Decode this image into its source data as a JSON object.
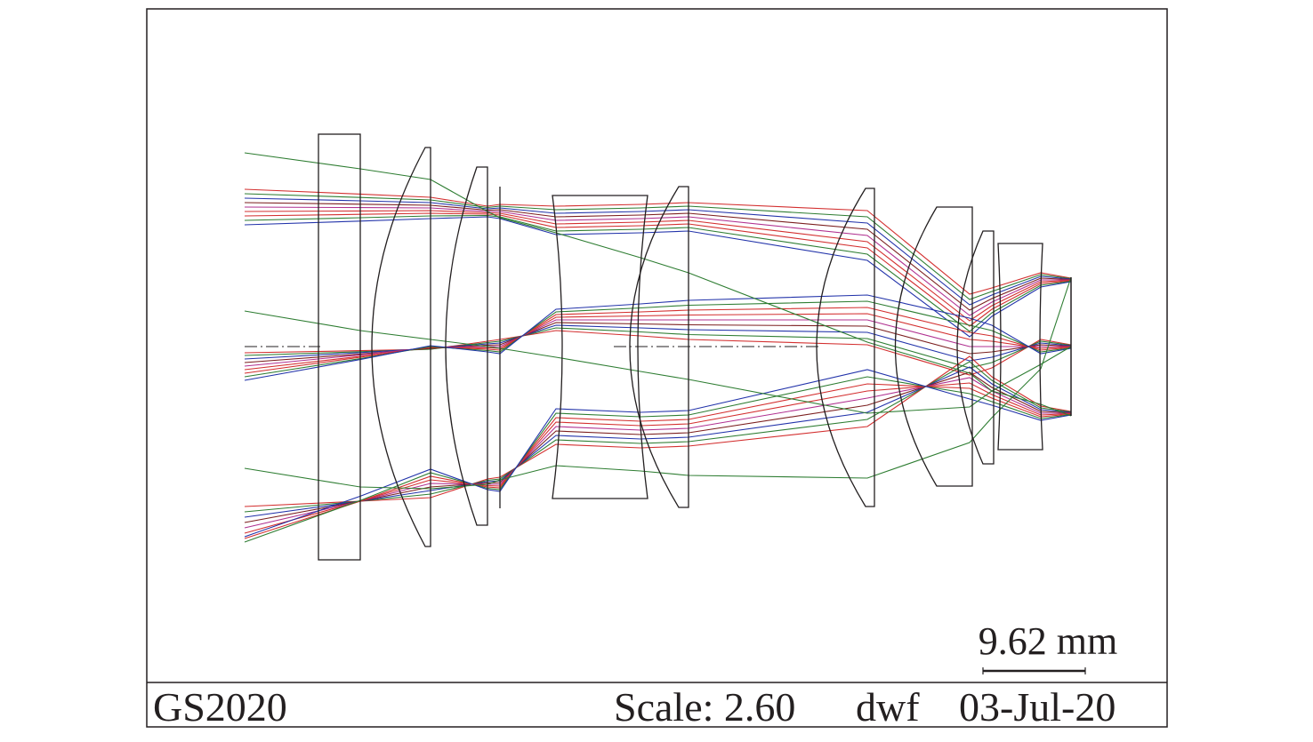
{
  "scale_bar": {
    "label": "9.62 mm"
  },
  "footer": {
    "design_name": "GS2020",
    "scale_label": "Scale: 2.60",
    "designer": "dwf",
    "date": "03-Jul-20"
  },
  "colors": {
    "frame": "#231f20",
    "ray_green": "#2e7d32",
    "ray_red": "#d32f2f",
    "ray_darkred": "#7b1f1f",
    "ray_blue": "#2233aa",
    "ray_magenta": "#b03090"
  }
}
